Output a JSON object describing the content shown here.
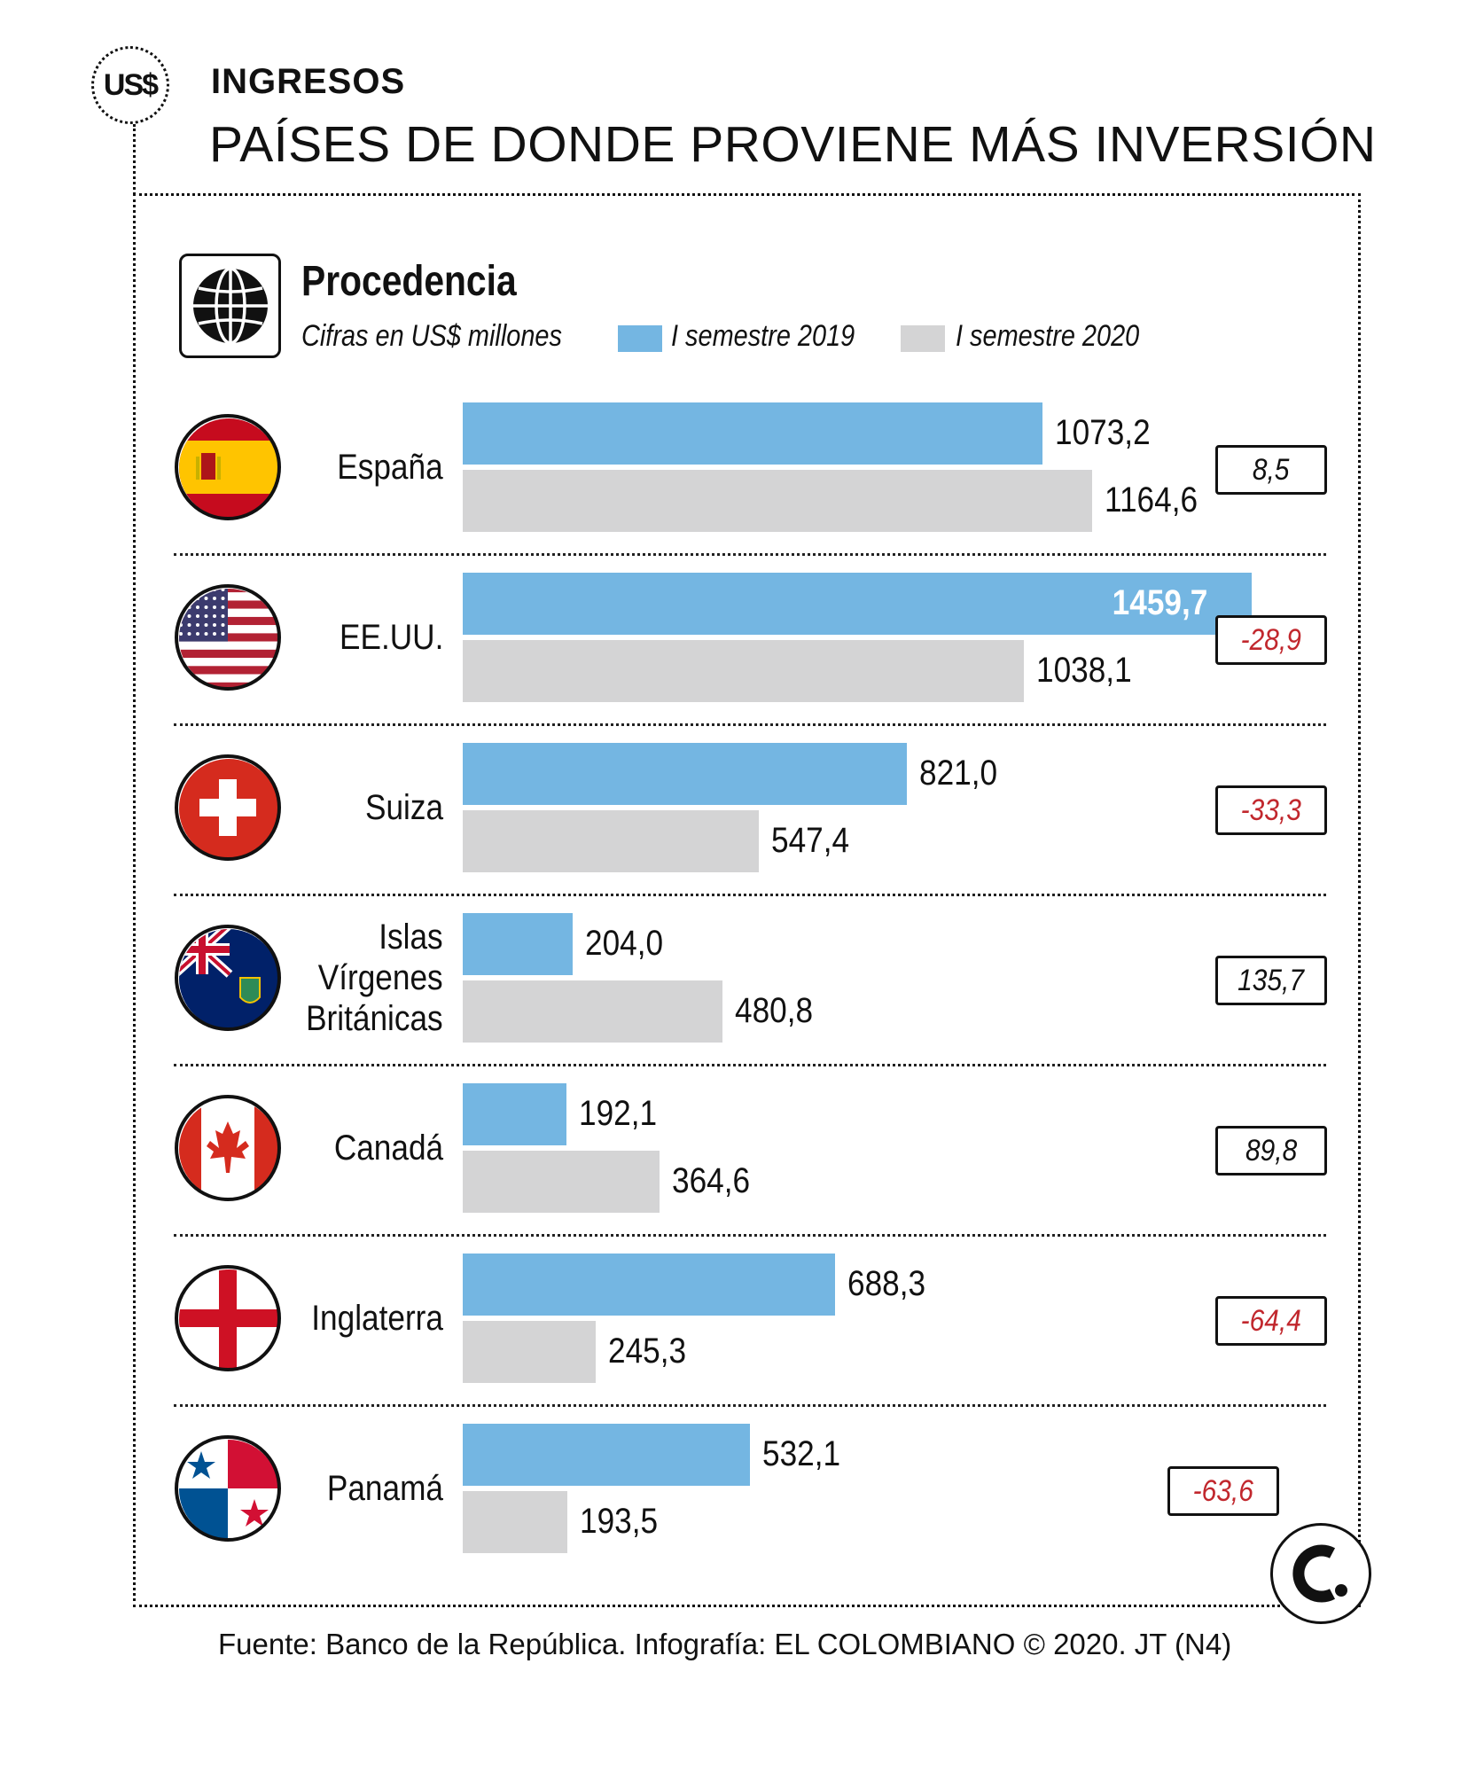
{
  "header": {
    "badge": "US$",
    "section": "INGRESOS",
    "title": "PAÍSES DE DONDE PROVIENE MÁS INVERSIÓN"
  },
  "legend": {
    "title": "Procedencia",
    "units": "Cifras en US$ millones",
    "series_2019": "I semestre 2019",
    "series_2020": "I semestre 2020"
  },
  "colors": {
    "series_2019": "#74b6e2",
    "series_2020": "#d4d4d5",
    "negative": "#c1272d"
  },
  "source": "Fuente: Banco de la República. Infografía: EL COLOMBIANO © 2020. JT (N4)",
  "logo": "C.",
  "chart_data": {
    "type": "bar",
    "orientation": "horizontal",
    "title": "Procedencia",
    "subtitle": "Cifras en US$ millones",
    "categories": [
      "España",
      "EE.UU.",
      "Suiza",
      "Islas Vírgenes Británicas",
      "Canadá",
      "Inglaterra",
      "Panamá"
    ],
    "category_lines": [
      [
        "España"
      ],
      [
        "EE.UU."
      ],
      [
        "Suiza"
      ],
      [
        "Islas",
        "Vírgenes",
        "Británicas"
      ],
      [
        "Canadá"
      ],
      [
        "Inglaterra"
      ],
      [
        "Panamá"
      ]
    ],
    "flag_icons": [
      "spain-flag-icon",
      "usa-flag-icon",
      "switzerland-flag-icon",
      "bvi-flag-icon",
      "canada-flag-icon",
      "england-flag-icon",
      "panama-flag-icon"
    ],
    "series": [
      {
        "name": "I semestre 2019",
        "values": [
          1073.2,
          1459.7,
          821.0,
          204.0,
          192.1,
          688.3,
          532.1
        ],
        "labels": [
          "1073,2",
          "1459,7",
          "821,0",
          "204,0",
          "192,1",
          "688,3",
          "532,1"
        ]
      },
      {
        "name": "I semestre 2020",
        "values": [
          1164.6,
          1038.1,
          547.4,
          480.8,
          364.6,
          245.3,
          193.5
        ],
        "labels": [
          "1164,6",
          "1038,1",
          "547,4",
          "480,8",
          "364,6",
          "245,3",
          "193,5"
        ]
      }
    ],
    "change_pct": [
      8.5,
      -28.9,
      -33.3,
      135.7,
      89.8,
      -64.4,
      -63.6
    ],
    "change_labels": [
      "8,5",
      "-28,9",
      "-33,3",
      "135,7",
      "89,8",
      "-64,4",
      "-63,6"
    ],
    "xlim": [
      0,
      1459.7
    ],
    "xlabel": "",
    "ylabel": "",
    "legend_position": "top"
  }
}
